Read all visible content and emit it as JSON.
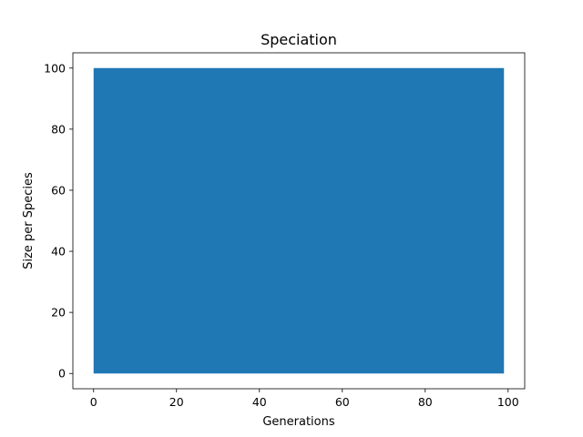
{
  "chart_data": {
    "type": "area",
    "title": "Speciation",
    "xlabel": "Generations",
    "ylabel": "Size per Species",
    "xlim": [
      -5,
      104
    ],
    "ylim": [
      -5,
      105
    ],
    "xticks": [
      0,
      20,
      40,
      60,
      80,
      100
    ],
    "yticks": [
      0,
      20,
      40,
      60,
      80,
      100
    ],
    "grid": false,
    "series": [
      {
        "x": [
          0,
          99
        ],
        "y": [
          100,
          100
        ],
        "color": "#1f77b4"
      }
    ]
  }
}
